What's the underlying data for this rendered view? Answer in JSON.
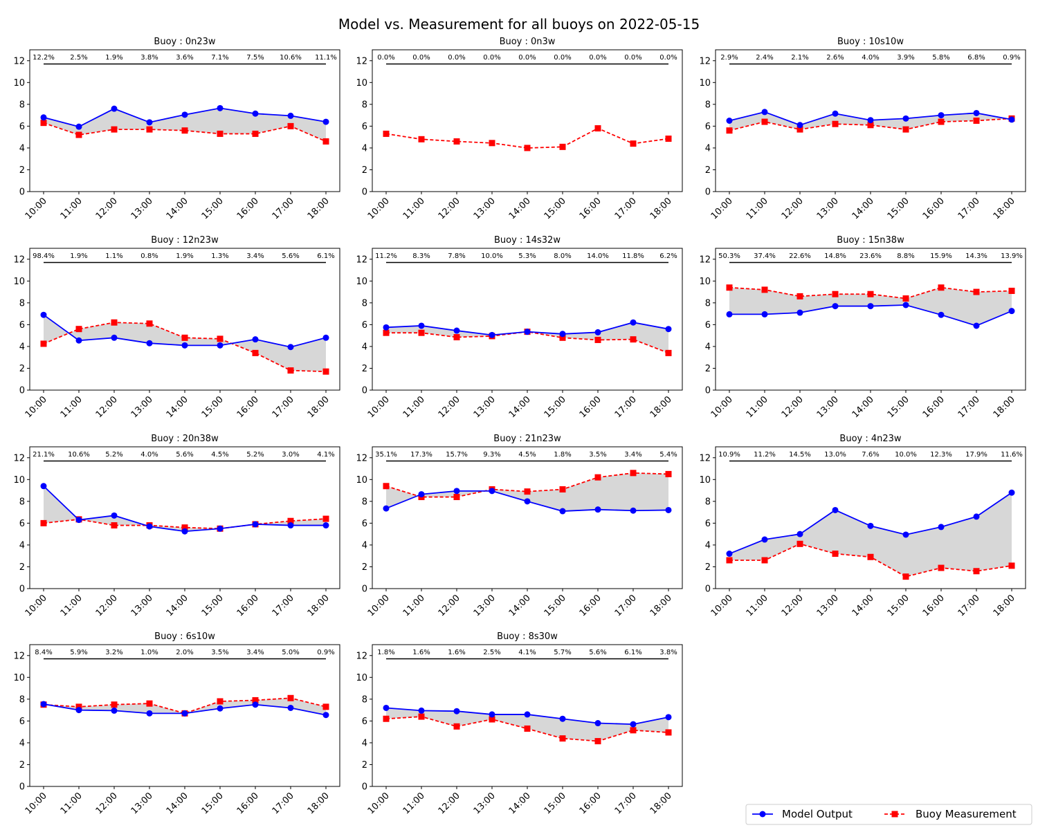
{
  "figure": {
    "title": "Model vs. Measurement for all buoys on 2022-05-15"
  },
  "legend": {
    "placement": "bottom-right",
    "items": [
      {
        "label": "Model Output",
        "color": "#0000ff",
        "marker": "circle",
        "linestyle": "solid"
      },
      {
        "label": "Buoy Measurement",
        "color": "#ff0000",
        "marker": "square",
        "linestyle": "dashed"
      }
    ]
  },
  "colors": {
    "model": "#0000ff",
    "measurement": "#ff0000",
    "fill": "#d3d3d3",
    "reference_line": "#000000"
  },
  "chart_data": [
    {
      "type": "line",
      "title": "Buoy : 0n23w",
      "categories": [
        "10:00",
        "11:00",
        "12:00",
        "13:00",
        "14:00",
        "15:00",
        "16:00",
        "17:00",
        "18:00"
      ],
      "ylim": [
        0,
        13
      ],
      "yticks": [
        0,
        2,
        4,
        6,
        8,
        10,
        12
      ],
      "grid": false,
      "reference_y": 11.7,
      "series": [
        {
          "name": "Model Output",
          "values": [
            6.8,
            5.95,
            7.6,
            6.35,
            7.05,
            7.65,
            7.15,
            6.95,
            6.4
          ]
        },
        {
          "name": "Buoy Measurement",
          "values": [
            6.3,
            5.2,
            5.7,
            5.7,
            5.6,
            5.3,
            5.3,
            6.0,
            4.6
          ]
        }
      ],
      "annotations": [
        "12.2%",
        "2.5%",
        "1.9%",
        "3.8%",
        "3.6%",
        "7.1%",
        "7.5%",
        "10.6%",
        "11.1%"
      ]
    },
    {
      "type": "line",
      "title": "Buoy : 0n3w",
      "categories": [
        "10:00",
        "11:00",
        "12:00",
        "13:00",
        "14:00",
        "15:00",
        "16:00",
        "17:00",
        "18:00"
      ],
      "ylim": [
        0,
        13
      ],
      "yticks": [
        0,
        2,
        4,
        6,
        8,
        10,
        12
      ],
      "grid": false,
      "reference_y": 11.7,
      "series": [
        {
          "name": "Buoy Measurement",
          "values": [
            5.3,
            4.8,
            4.6,
            4.45,
            4.0,
            4.1,
            5.8,
            4.4,
            4.85
          ]
        }
      ],
      "annotations": [
        "0.0%",
        "0.0%",
        "0.0%",
        "0.0%",
        "0.0%",
        "0.0%",
        "0.0%",
        "0.0%",
        "0.0%"
      ]
    },
    {
      "type": "line",
      "title": "Buoy : 10s10w",
      "categories": [
        "10:00",
        "11:00",
        "12:00",
        "13:00",
        "14:00",
        "15:00",
        "16:00",
        "17:00",
        "18:00"
      ],
      "ylim": [
        0,
        13
      ],
      "yticks": [
        0,
        2,
        4,
        6,
        8,
        10,
        12
      ],
      "grid": false,
      "reference_y": 11.7,
      "series": [
        {
          "name": "Model Output",
          "values": [
            6.5,
            7.3,
            6.1,
            7.15,
            6.55,
            6.7,
            7.0,
            7.2,
            6.6
          ]
        },
        {
          "name": "Buoy Measurement",
          "values": [
            5.6,
            6.4,
            5.7,
            6.2,
            6.1,
            5.7,
            6.4,
            6.5,
            6.7
          ]
        }
      ],
      "annotations": [
        "2.9%",
        "2.4%",
        "2.1%",
        "2.6%",
        "4.0%",
        "3.9%",
        "5.8%",
        "6.8%",
        "0.9%"
      ]
    },
    {
      "type": "line",
      "title": "Buoy : 12n23w",
      "categories": [
        "10:00",
        "11:00",
        "12:00",
        "13:00",
        "14:00",
        "15:00",
        "16:00",
        "17:00",
        "18:00"
      ],
      "ylim": [
        0,
        13
      ],
      "yticks": [
        0,
        2,
        4,
        6,
        8,
        10,
        12
      ],
      "grid": false,
      "reference_y": 11.7,
      "series": [
        {
          "name": "Model Output",
          "values": [
            6.9,
            4.55,
            4.8,
            4.3,
            4.1,
            4.1,
            4.65,
            3.95,
            4.8
          ]
        },
        {
          "name": "Buoy Measurement",
          "values": [
            4.25,
            5.6,
            6.2,
            6.1,
            4.8,
            4.7,
            3.4,
            1.8,
            1.7
          ]
        }
      ],
      "annotations": [
        "98.4%",
        "1.9%",
        "1.1%",
        "0.8%",
        "1.9%",
        "1.3%",
        "3.4%",
        "5.6%",
        "6.1%"
      ]
    },
    {
      "type": "line",
      "title": "Buoy : 14s32w",
      "categories": [
        "10:00",
        "11:00",
        "12:00",
        "13:00",
        "14:00",
        "15:00",
        "16:00",
        "17:00",
        "18:00"
      ],
      "ylim": [
        0,
        13
      ],
      "yticks": [
        0,
        2,
        4,
        6,
        8,
        10,
        12
      ],
      "grid": false,
      "reference_y": 11.7,
      "series": [
        {
          "name": "Model Output",
          "values": [
            5.75,
            5.9,
            5.45,
            5.05,
            5.35,
            5.15,
            5.3,
            6.2,
            5.6
          ]
        },
        {
          "name": "Buoy Measurement",
          "values": [
            5.25,
            5.25,
            4.85,
            4.95,
            5.35,
            4.8,
            4.6,
            4.65,
            3.4
          ]
        }
      ],
      "annotations": [
        "11.2%",
        "8.3%",
        "7.8%",
        "10.0%",
        "5.3%",
        "8.0%",
        "14.0%",
        "11.8%",
        "6.2%"
      ]
    },
    {
      "type": "line",
      "title": "Buoy : 15n38w",
      "categories": [
        "10:00",
        "11:00",
        "12:00",
        "13:00",
        "14:00",
        "15:00",
        "16:00",
        "17:00",
        "18:00"
      ],
      "ylim": [
        0,
        13
      ],
      "yticks": [
        0,
        2,
        4,
        6,
        8,
        10,
        12
      ],
      "grid": false,
      "reference_y": 11.7,
      "series": [
        {
          "name": "Model Output",
          "values": [
            6.95,
            6.95,
            7.1,
            7.7,
            7.7,
            7.8,
            6.9,
            5.9,
            7.25
          ]
        },
        {
          "name": "Buoy Measurement",
          "values": [
            9.4,
            9.2,
            8.6,
            8.8,
            8.8,
            8.4,
            9.4,
            9.0,
            9.1
          ]
        }
      ],
      "annotations": [
        "50.3%",
        "37.4%",
        "22.6%",
        "14.8%",
        "23.6%",
        "8.8%",
        "15.9%",
        "14.3%",
        "13.9%"
      ]
    },
    {
      "type": "line",
      "title": "Buoy : 20n38w",
      "categories": [
        "10:00",
        "11:00",
        "12:00",
        "13:00",
        "14:00",
        "15:00",
        "16:00",
        "17:00",
        "18:00"
      ],
      "ylim": [
        0,
        13
      ],
      "yticks": [
        0,
        2,
        4,
        6,
        8,
        10,
        12
      ],
      "grid": false,
      "reference_y": 11.7,
      "series": [
        {
          "name": "Model Output",
          "values": [
            9.4,
            6.3,
            6.7,
            5.7,
            5.25,
            5.5,
            5.9,
            5.8,
            5.8
          ]
        },
        {
          "name": "Buoy Measurement",
          "values": [
            6.0,
            6.35,
            5.8,
            5.8,
            5.6,
            5.5,
            5.9,
            6.2,
            6.4
          ]
        }
      ],
      "annotations": [
        "21.1%",
        "10.6%",
        "5.2%",
        "4.0%",
        "5.6%",
        "4.5%",
        "5.2%",
        "3.0%",
        "4.1%"
      ]
    },
    {
      "type": "line",
      "title": "Buoy : 21n23w",
      "categories": [
        "10:00",
        "11:00",
        "12:00",
        "13:00",
        "14:00",
        "15:00",
        "16:00",
        "17:00",
        "18:00"
      ],
      "ylim": [
        0,
        13
      ],
      "yticks": [
        0,
        2,
        4,
        6,
        8,
        10,
        12
      ],
      "grid": false,
      "reference_y": 11.7,
      "series": [
        {
          "name": "Model Output",
          "values": [
            7.35,
            8.65,
            8.95,
            8.95,
            8.0,
            7.1,
            7.25,
            7.15,
            7.2
          ]
        },
        {
          "name": "Buoy Measurement",
          "values": [
            9.4,
            8.4,
            8.4,
            9.1,
            8.9,
            9.1,
            10.2,
            10.6,
            10.5
          ]
        }
      ],
      "annotations": [
        "35.1%",
        "17.3%",
        "15.7%",
        "9.3%",
        "4.5%",
        "1.8%",
        "3.5%",
        "3.4%",
        "5.4%"
      ]
    },
    {
      "type": "line",
      "title": "Buoy : 4n23w",
      "categories": [
        "10:00",
        "11:00",
        "12:00",
        "13:00",
        "14:00",
        "15:00",
        "16:00",
        "17:00",
        "18:00"
      ],
      "ylim": [
        0,
        13
      ],
      "yticks": [
        0,
        2,
        4,
        6,
        8,
        10,
        12
      ],
      "grid": false,
      "reference_y": 11.7,
      "series": [
        {
          "name": "Model Output",
          "values": [
            3.2,
            4.5,
            5.0,
            7.2,
            5.75,
            4.95,
            5.65,
            6.6,
            8.8
          ]
        },
        {
          "name": "Buoy Measurement",
          "values": [
            2.6,
            2.6,
            4.1,
            3.2,
            2.9,
            1.1,
            1.9,
            1.6,
            2.1
          ]
        }
      ],
      "annotations": [
        "10.9%",
        "11.2%",
        "14.5%",
        "13.0%",
        "7.6%",
        "10.0%",
        "12.3%",
        "17.9%",
        "11.6%"
      ]
    },
    {
      "type": "line",
      "title": "Buoy : 6s10w",
      "categories": [
        "10:00",
        "11:00",
        "12:00",
        "13:00",
        "14:00",
        "15:00",
        "16:00",
        "17:00",
        "18:00"
      ],
      "ylim": [
        0,
        13
      ],
      "yticks": [
        0,
        2,
        4,
        6,
        8,
        10,
        12
      ],
      "grid": false,
      "reference_y": 11.7,
      "series": [
        {
          "name": "Model Output",
          "values": [
            7.55,
            7.0,
            6.95,
            6.7,
            6.7,
            7.15,
            7.5,
            7.2,
            6.55
          ]
        },
        {
          "name": "Buoy Measurement",
          "values": [
            7.5,
            7.3,
            7.5,
            7.6,
            6.7,
            7.8,
            7.9,
            8.1,
            7.3
          ]
        }
      ],
      "annotations": [
        "8.4%",
        "5.9%",
        "3.2%",
        "1.0%",
        "2.0%",
        "3.5%",
        "3.4%",
        "5.0%",
        "0.9%"
      ]
    },
    {
      "type": "line",
      "title": "Buoy : 8s30w",
      "categories": [
        "10:00",
        "11:00",
        "12:00",
        "13:00",
        "14:00",
        "15:00",
        "16:00",
        "17:00",
        "18:00"
      ],
      "ylim": [
        0,
        13
      ],
      "yticks": [
        0,
        2,
        4,
        6,
        8,
        10,
        12
      ],
      "grid": false,
      "reference_y": 11.7,
      "series": [
        {
          "name": "Model Output",
          "values": [
            7.2,
            6.95,
            6.9,
            6.6,
            6.6,
            6.2,
            5.8,
            5.7,
            6.35
          ]
        },
        {
          "name": "Buoy Measurement",
          "values": [
            6.2,
            6.4,
            5.5,
            6.15,
            5.3,
            4.4,
            4.15,
            5.15,
            4.95
          ]
        }
      ],
      "annotations": [
        "1.8%",
        "1.6%",
        "1.6%",
        "2.5%",
        "4.1%",
        "5.7%",
        "5.6%",
        "6.1%",
        "3.8%"
      ]
    }
  ]
}
